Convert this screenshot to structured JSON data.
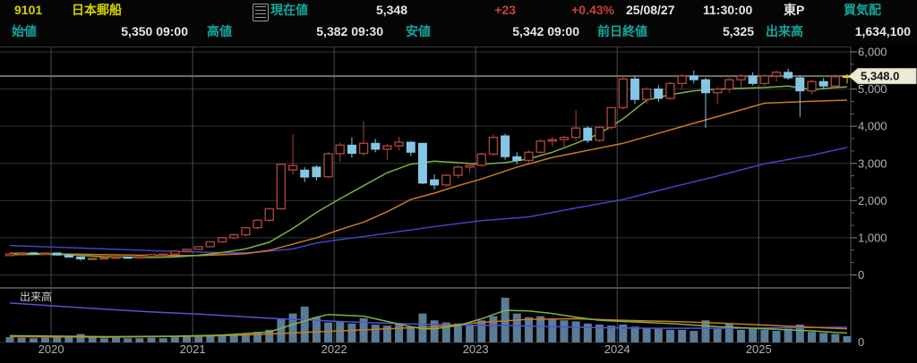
{
  "header": {
    "code": "9101",
    "name": "日本郵船",
    "current_label": "現在値",
    "current_value": "5,348",
    "change": "+23",
    "change_pct": "+0.43%",
    "date": "25/08/27",
    "time": "11:30:00",
    "market": "東P",
    "quote_label": "買気配",
    "open_label": "始値",
    "open_value": "5,350 09:00",
    "high_label": "高値",
    "high_value": "5,382 09:30",
    "low_label": "安値",
    "low_value": "5,342 09:00",
    "prev_close_label": "前日終値",
    "prev_close_value": "5,325",
    "volume_label": "出来高",
    "volume_value": "1,634,100"
  },
  "chart": {
    "colors": {
      "up_candle": "#a84438",
      "down_candle": "#85c6e4",
      "current_candle": "#d8d818",
      "ma_short": "#7cb342",
      "ma_mid": "#cc7a26",
      "ma_long": "#4242c8",
      "vol_ma_long": "#5252d8",
      "volume_bar": "#5a7c96",
      "grid": "#33333b",
      "year_grid": "#434c58",
      "pane_border": "#4a4c52",
      "axis_line": "#555555",
      "tick": "#888888",
      "axis_text": "#b2b2b2",
      "price_line": "#75725f",
      "callout_bg": "#efead6",
      "callout_text": "#151515",
      "pane_label": "#cfcfcf"
    }
  },
  "chart_data": {
    "type": "candlestick",
    "title": "9101 日本郵船 monthly candlestick with volume",
    "pane_volume_label": "出来高",
    "volume_axis_zero": "0",
    "current_price": 5348,
    "current_price_label": "5,348.0",
    "y_axis": {
      "min": 0,
      "max": 6000,
      "step": 1000,
      "labels": [
        [
          "6,000",
          6000
        ],
        [
          "5,000",
          5000
        ],
        [
          "4,000",
          4000
        ],
        [
          "3,000",
          3000
        ],
        [
          "2,000",
          2000
        ],
        [
          "1,000",
          1000
        ],
        [
          "0",
          0
        ]
      ]
    },
    "x_axis": {
      "years": [
        "2020",
        "2021",
        "2022",
        "2023",
        "2024",
        "2025"
      ]
    },
    "candles": [
      [
        "2019-09",
        520,
        575,
        505,
        565
      ],
      [
        "2019-10",
        565,
        605,
        545,
        595
      ],
      [
        "2019-11",
        595,
        615,
        560,
        575
      ],
      [
        "2019-12",
        575,
        605,
        555,
        590
      ],
      [
        "2020-01",
        590,
        600,
        520,
        535
      ],
      [
        "2020-02",
        535,
        550,
        465,
        480
      ],
      [
        "2020-03",
        480,
        495,
        385,
        430
      ],
      [
        "2020-04",
        430,
        465,
        415,
        445
      ],
      [
        "2020-05",
        445,
        470,
        430,
        460
      ],
      [
        "2020-06",
        460,
        510,
        450,
        480
      ],
      [
        "2020-07",
        480,
        495,
        445,
        455
      ],
      [
        "2020-08",
        455,
        505,
        450,
        495
      ],
      [
        "2020-09",
        495,
        560,
        490,
        550
      ],
      [
        "2020-10",
        550,
        580,
        530,
        560
      ],
      [
        "2020-11",
        560,
        650,
        545,
        640
      ],
      [
        "2020-12",
        640,
        700,
        620,
        690
      ],
      [
        "2021-01",
        690,
        780,
        670,
        760
      ],
      [
        "2021-02",
        760,
        900,
        740,
        890
      ],
      [
        "2021-03",
        890,
        1020,
        860,
        1000
      ],
      [
        "2021-04",
        1000,
        1120,
        950,
        1080
      ],
      [
        "2021-05",
        1080,
        1300,
        1040,
        1270
      ],
      [
        "2021-06",
        1270,
        1500,
        1220,
        1470
      ],
      [
        "2021-07",
        1470,
        1800,
        1430,
        1780
      ],
      [
        "2021-08",
        1780,
        3000,
        1750,
        2975
      ],
      [
        "2021-09",
        2825,
        3780,
        2700,
        2940
      ],
      [
        "2021-10",
        2820,
        2900,
        2500,
        2630
      ],
      [
        "2021-11",
        2900,
        2950,
        2540,
        2640
      ],
      [
        "2021-12",
        2640,
        3300,
        2600,
        3260
      ],
      [
        "2022-01",
        3260,
        3560,
        3050,
        3490
      ],
      [
        "2022-02",
        3490,
        3700,
        3150,
        3270
      ],
      [
        "2022-03",
        3270,
        4140,
        3200,
        3540
      ],
      [
        "2022-04",
        3540,
        3660,
        3300,
        3380
      ],
      [
        "2022-05",
        3380,
        3520,
        3100,
        3470
      ],
      [
        "2022-06",
        3470,
        3720,
        3350,
        3570
      ],
      [
        "2022-07",
        3570,
        3600,
        3200,
        3300
      ],
      [
        "2022-08",
        3540,
        3560,
        2440,
        2470
      ],
      [
        "2022-09",
        2560,
        2700,
        2300,
        2420
      ],
      [
        "2022-10",
        2420,
        2720,
        2350,
        2680
      ],
      [
        "2022-11",
        2680,
        2950,
        2600,
        2900
      ],
      [
        "2022-12",
        2900,
        3020,
        2750,
        2950
      ],
      [
        "2023-01",
        2950,
        3300,
        2900,
        3250
      ],
      [
        "2023-02",
        3250,
        3780,
        3200,
        3700
      ],
      [
        "2023-03",
        3740,
        3800,
        3100,
        3180
      ],
      [
        "2023-04",
        3180,
        3300,
        2980,
        3080
      ],
      [
        "2023-05",
        3080,
        3350,
        3000,
        3300
      ],
      [
        "2023-06",
        3300,
        3650,
        3250,
        3600
      ],
      [
        "2023-07",
        3600,
        3720,
        3450,
        3640
      ],
      [
        "2023-08",
        3640,
        3750,
        3450,
        3700
      ],
      [
        "2023-09",
        3700,
        4430,
        3600,
        3950
      ],
      [
        "2023-10",
        3950,
        4000,
        3550,
        3620
      ],
      [
        "2023-11",
        3620,
        4000,
        3580,
        3970
      ],
      [
        "2023-12",
        3970,
        4520,
        3900,
        4500
      ],
      [
        "2024-01",
        4500,
        5350,
        4450,
        5270
      ],
      [
        "2024-02",
        5270,
        5350,
        4600,
        4720
      ],
      [
        "2024-03",
        4720,
        5050,
        4600,
        5000
      ],
      [
        "2024-04",
        5000,
        5100,
        4650,
        4750
      ],
      [
        "2024-05",
        4750,
        5200,
        4700,
        5150
      ],
      [
        "2024-06",
        5150,
        5400,
        5000,
        5350
      ],
      [
        "2024-07",
        5350,
        5500,
        5150,
        5250
      ],
      [
        "2024-08",
        5250,
        5300,
        3950,
        4900
      ],
      [
        "2024-09",
        4900,
        5050,
        4600,
        5000
      ],
      [
        "2024-10",
        5000,
        5300,
        4900,
        5250
      ],
      [
        "2024-11",
        5250,
        5400,
        5050,
        5350
      ],
      [
        "2024-12",
        5350,
        5450,
        5100,
        5150
      ],
      [
        "2025-01",
        5150,
        5400,
        5050,
        5350
      ],
      [
        "2025-02",
        5350,
        5500,
        5200,
        5450
      ],
      [
        "2025-03",
        5450,
        5550,
        5250,
        5300
      ],
      [
        "2025-04",
        5300,
        5350,
        4250,
        4950
      ],
      [
        "2025-05",
        4950,
        5250,
        4850,
        5200
      ],
      [
        "2025-06",
        5200,
        5300,
        5000,
        5080
      ],
      [
        "2025-07",
        5080,
        5400,
        5050,
        5330
      ],
      [
        "2025-08",
        5325,
        5400,
        5150,
        5348
      ]
    ],
    "volume": [
      10,
      9,
      8,
      9,
      10,
      12,
      16,
      10,
      8,
      9,
      8,
      8,
      9,
      8,
      10,
      11,
      12,
      13,
      15,
      14,
      16,
      20,
      24,
      45,
      55,
      68,
      48,
      38,
      40,
      36,
      46,
      34,
      32,
      35,
      30,
      55,
      42,
      38,
      36,
      32,
      42,
      50,
      85,
      55,
      48,
      50,
      45,
      42,
      40,
      36,
      34,
      32,
      34,
      30,
      28,
      26,
      24,
      24,
      22,
      42,
      26,
      36,
      24,
      26,
      24,
      22,
      26,
      34,
      20,
      18,
      16,
      12
    ],
    "price_ma": {
      "short": [
        [
          0,
          545
        ],
        [
          4,
          555
        ],
        [
          8,
          490
        ],
        [
          12,
          470
        ],
        [
          14,
          485
        ],
        [
          16,
          530
        ],
        [
          18,
          600
        ],
        [
          20,
          700
        ],
        [
          22,
          880
        ],
        [
          24,
          1250
        ],
        [
          26,
          1680
        ],
        [
          28,
          2050
        ],
        [
          30,
          2400
        ],
        [
          32,
          2750
        ],
        [
          34,
          2980
        ],
        [
          36,
          3060
        ],
        [
          38,
          3020
        ],
        [
          40,
          2980
        ],
        [
          42,
          3020
        ],
        [
          44,
          3120
        ],
        [
          46,
          3300
        ],
        [
          48,
          3540
        ],
        [
          50,
          3800
        ],
        [
          52,
          4200
        ],
        [
          54,
          4700
        ],
        [
          56,
          4850
        ],
        [
          58,
          4950
        ],
        [
          60,
          5000
        ],
        [
          62,
          5020
        ],
        [
          64,
          5040
        ],
        [
          66,
          5080
        ],
        [
          68,
          4980
        ],
        [
          70,
          5040
        ],
        [
          71,
          5060
        ]
      ],
      "mid": [
        [
          0,
          585
        ],
        [
          6,
          555
        ],
        [
          12,
          525
        ],
        [
          16,
          520
        ],
        [
          20,
          570
        ],
        [
          22,
          660
        ],
        [
          26,
          1000
        ],
        [
          28,
          1220
        ],
        [
          30,
          1420
        ],
        [
          32,
          1700
        ],
        [
          34,
          2030
        ],
        [
          36,
          2200
        ],
        [
          38,
          2400
        ],
        [
          40,
          2580
        ],
        [
          43,
          2900
        ],
        [
          46,
          3160
        ],
        [
          49,
          3350
        ],
        [
          52,
          3540
        ],
        [
          56,
          3900
        ],
        [
          60,
          4260
        ],
        [
          64,
          4620
        ],
        [
          68,
          4670
        ],
        [
          71,
          4700
        ]
      ],
      "long": [
        [
          0,
          790
        ],
        [
          8,
          700
        ],
        [
          14,
          630
        ],
        [
          18,
          600
        ],
        [
          20,
          593
        ],
        [
          22,
          640
        ],
        [
          24,
          700
        ],
        [
          26,
          860
        ],
        [
          28,
          950
        ],
        [
          32,
          1120
        ],
        [
          36,
          1300
        ],
        [
          40,
          1460
        ],
        [
          44,
          1560
        ],
        [
          48,
          1800
        ],
        [
          52,
          2030
        ],
        [
          56,
          2350
        ],
        [
          60,
          2660
        ],
        [
          64,
          2990
        ],
        [
          68,
          3220
        ],
        [
          71,
          3430
        ]
      ]
    },
    "volume_ma": {
      "short": [
        [
          0,
          13
        ],
        [
          8,
          11
        ],
        [
          14,
          12
        ],
        [
          18,
          14
        ],
        [
          22,
          20
        ],
        [
          24,
          34
        ],
        [
          26,
          48
        ],
        [
          27,
          53
        ],
        [
          28,
          52
        ],
        [
          30,
          50
        ],
        [
          32,
          40
        ],
        [
          34,
          30
        ],
        [
          35,
          26
        ],
        [
          36,
          26
        ],
        [
          38,
          32
        ],
        [
          40,
          45
        ],
        [
          42,
          61
        ],
        [
          44,
          60
        ],
        [
          46,
          55
        ],
        [
          48,
          48
        ],
        [
          50,
          42
        ],
        [
          52,
          40
        ],
        [
          54,
          38
        ],
        [
          56,
          36
        ],
        [
          58,
          33
        ],
        [
          60,
          30
        ],
        [
          62,
          28
        ],
        [
          64,
          26
        ],
        [
          66,
          24
        ],
        [
          68,
          22
        ],
        [
          70,
          19
        ],
        [
          71,
          18
        ]
      ],
      "mid": [
        [
          0,
          11
        ],
        [
          8,
          10
        ],
        [
          16,
          12
        ],
        [
          20,
          14
        ],
        [
          24,
          18
        ],
        [
          28,
          22
        ],
        [
          32,
          26
        ],
        [
          36,
          30
        ],
        [
          40,
          38
        ],
        [
          44,
          44
        ],
        [
          48,
          45
        ],
        [
          52,
          42
        ],
        [
          56,
          40
        ],
        [
          60,
          37
        ],
        [
          64,
          33
        ],
        [
          68,
          29
        ],
        [
          71,
          26
        ]
      ],
      "long": [
        [
          0,
          75
        ],
        [
          6,
          66
        ],
        [
          12,
          58
        ],
        [
          16,
          54
        ],
        [
          22,
          46
        ],
        [
          26,
          42
        ],
        [
          30,
          38
        ],
        [
          34,
          35
        ],
        [
          38,
          33
        ],
        [
          42,
          32
        ],
        [
          46,
          30
        ],
        [
          50,
          28
        ],
        [
          54,
          27
        ],
        [
          58,
          27
        ],
        [
          62,
          27
        ],
        [
          66,
          28
        ],
        [
          71,
          29
        ]
      ]
    }
  }
}
